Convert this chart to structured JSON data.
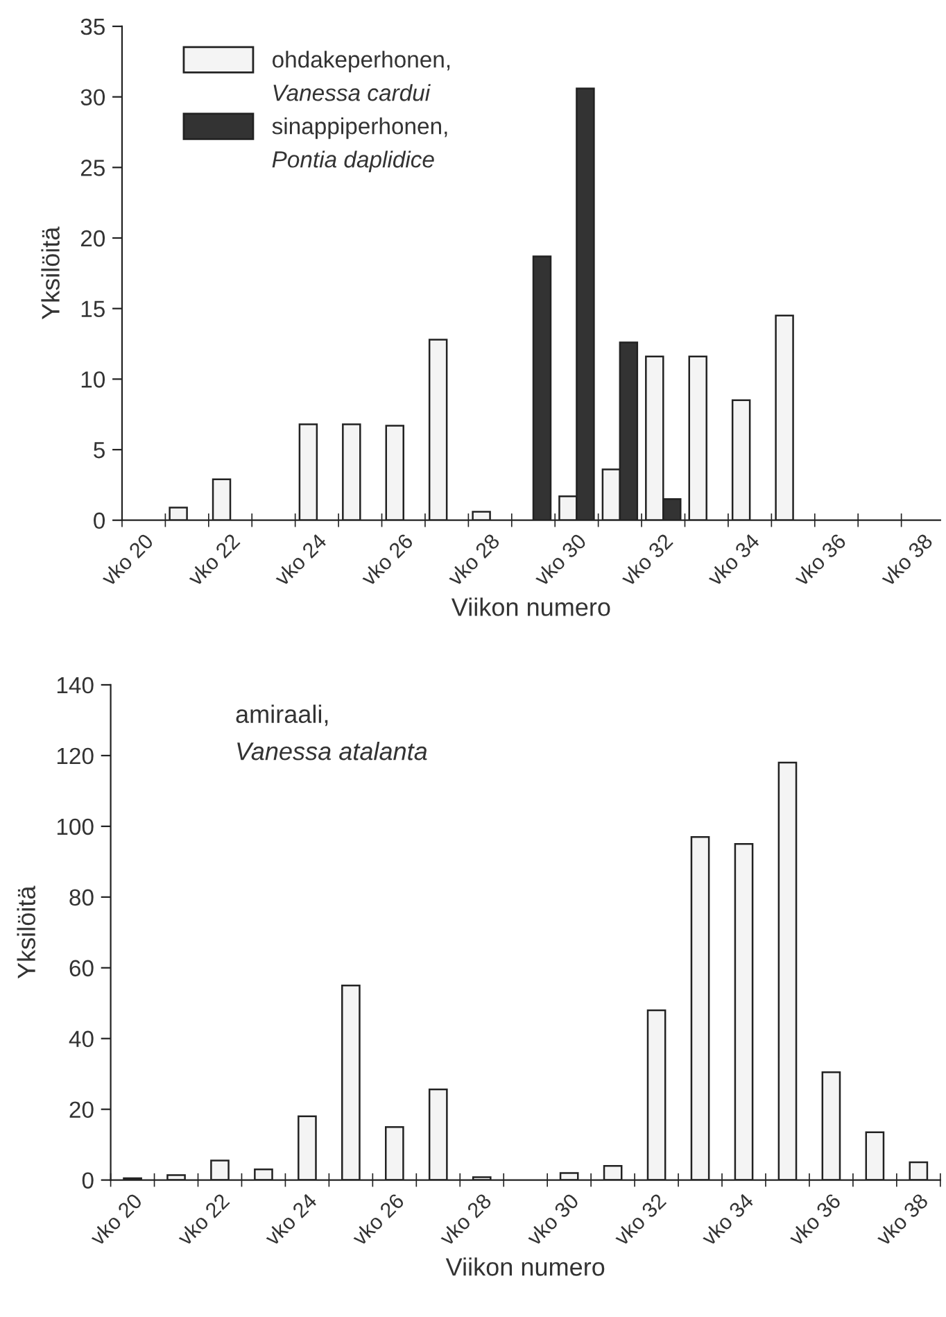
{
  "chart_data": [
    {
      "type": "bar",
      "xlabel": "Viikon numero",
      "ylabel": "Yksilöitä",
      "categories": [
        "vko 20",
        null,
        "vko 22",
        null,
        "vko 24",
        null,
        "vko 26",
        null,
        "vko 28",
        null,
        "vko 30",
        null,
        "vko 32",
        null,
        "vko 34",
        null,
        "vko 36",
        null,
        "vko 38"
      ],
      "series": [
        {
          "name": "ohdakeperhonen,\nVanessa cardui",
          "color": "#f4f4f4",
          "values": [
            null,
            0.9,
            2.9,
            null,
            6.8,
            6.8,
            6.7,
            12.8,
            0.6,
            null,
            1.7,
            3.6,
            11.6,
            11.6,
            8.5,
            14.5,
            null,
            null,
            null
          ]
        },
        {
          "name": "sinappiperhonen,\nPontia daplidice",
          "color": "#333333",
          "values": [
            null,
            null,
            null,
            null,
            null,
            null,
            null,
            null,
            null,
            18.7,
            30.6,
            12.6,
            1.5,
            null,
            null,
            null,
            null,
            null,
            null
          ]
        }
      ],
      "ylim": [
        0,
        35
      ],
      "yticks": [
        0,
        5,
        10,
        15,
        20,
        25,
        30,
        35
      ],
      "legend": "top left",
      "grid": false
    },
    {
      "type": "bar",
      "xlabel": "Viikon numero",
      "ylabel": "Yksilöitä",
      "categories": [
        "vko 20",
        null,
        "vko 22",
        null,
        "vko 24",
        null,
        "vko 26",
        null,
        "vko 28",
        null,
        "vko 30",
        null,
        "vko 32",
        null,
        "vko 34",
        null,
        "vko 36",
        null,
        "vko 38"
      ],
      "series": [
        {
          "color": "#f4f4f4",
          "values": [
            0.5,
            1.4,
            5.5,
            3,
            18,
            55,
            15,
            25.6,
            0.8,
            null,
            2,
            4,
            48,
            97,
            95,
            118,
            30.5,
            13.5,
            5
          ]
        }
      ],
      "annotations": [
        "amiraali,\nVanessa atalanta"
      ],
      "ylim": [
        0,
        140
      ],
      "yticks": [
        0,
        20,
        40,
        60,
        80,
        100,
        120,
        140
      ],
      "grid": false
    }
  ]
}
